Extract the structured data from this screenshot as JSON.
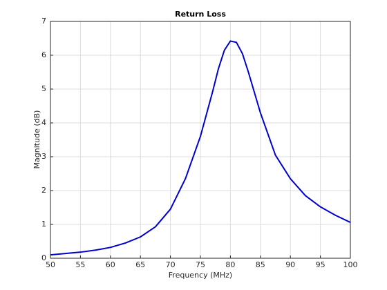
{
  "chart_data": {
    "type": "line",
    "title": "Return Loss",
    "xlabel": "Frequency (MHz)",
    "ylabel": "Magnitude (dB)",
    "x": [
      50,
      52.5,
      55,
      57.5,
      60,
      62.5,
      65,
      67.5,
      70,
      72.5,
      75,
      76,
      77,
      78,
      79,
      80,
      81,
      82,
      83,
      84,
      85,
      87.5,
      90,
      92.5,
      95,
      97.5,
      100
    ],
    "values": [
      0.1,
      0.14,
      0.18,
      0.24,
      0.32,
      0.45,
      0.63,
      0.93,
      1.45,
      2.35,
      3.6,
      4.25,
      4.9,
      5.6,
      6.15,
      6.42,
      6.38,
      6.05,
      5.5,
      4.9,
      4.3,
      3.05,
      2.35,
      1.85,
      1.52,
      1.27,
      1.06
    ],
    "color": "#0000cd",
    "xlim": [
      50,
      100
    ],
    "xticks": [
      50,
      55,
      60,
      65,
      70,
      75,
      80,
      85,
      90,
      95,
      100
    ],
    "ylim": [
      0,
      7
    ],
    "yticks": [
      0,
      1,
      2,
      3,
      4,
      5,
      6,
      7
    ],
    "grid": true
  }
}
